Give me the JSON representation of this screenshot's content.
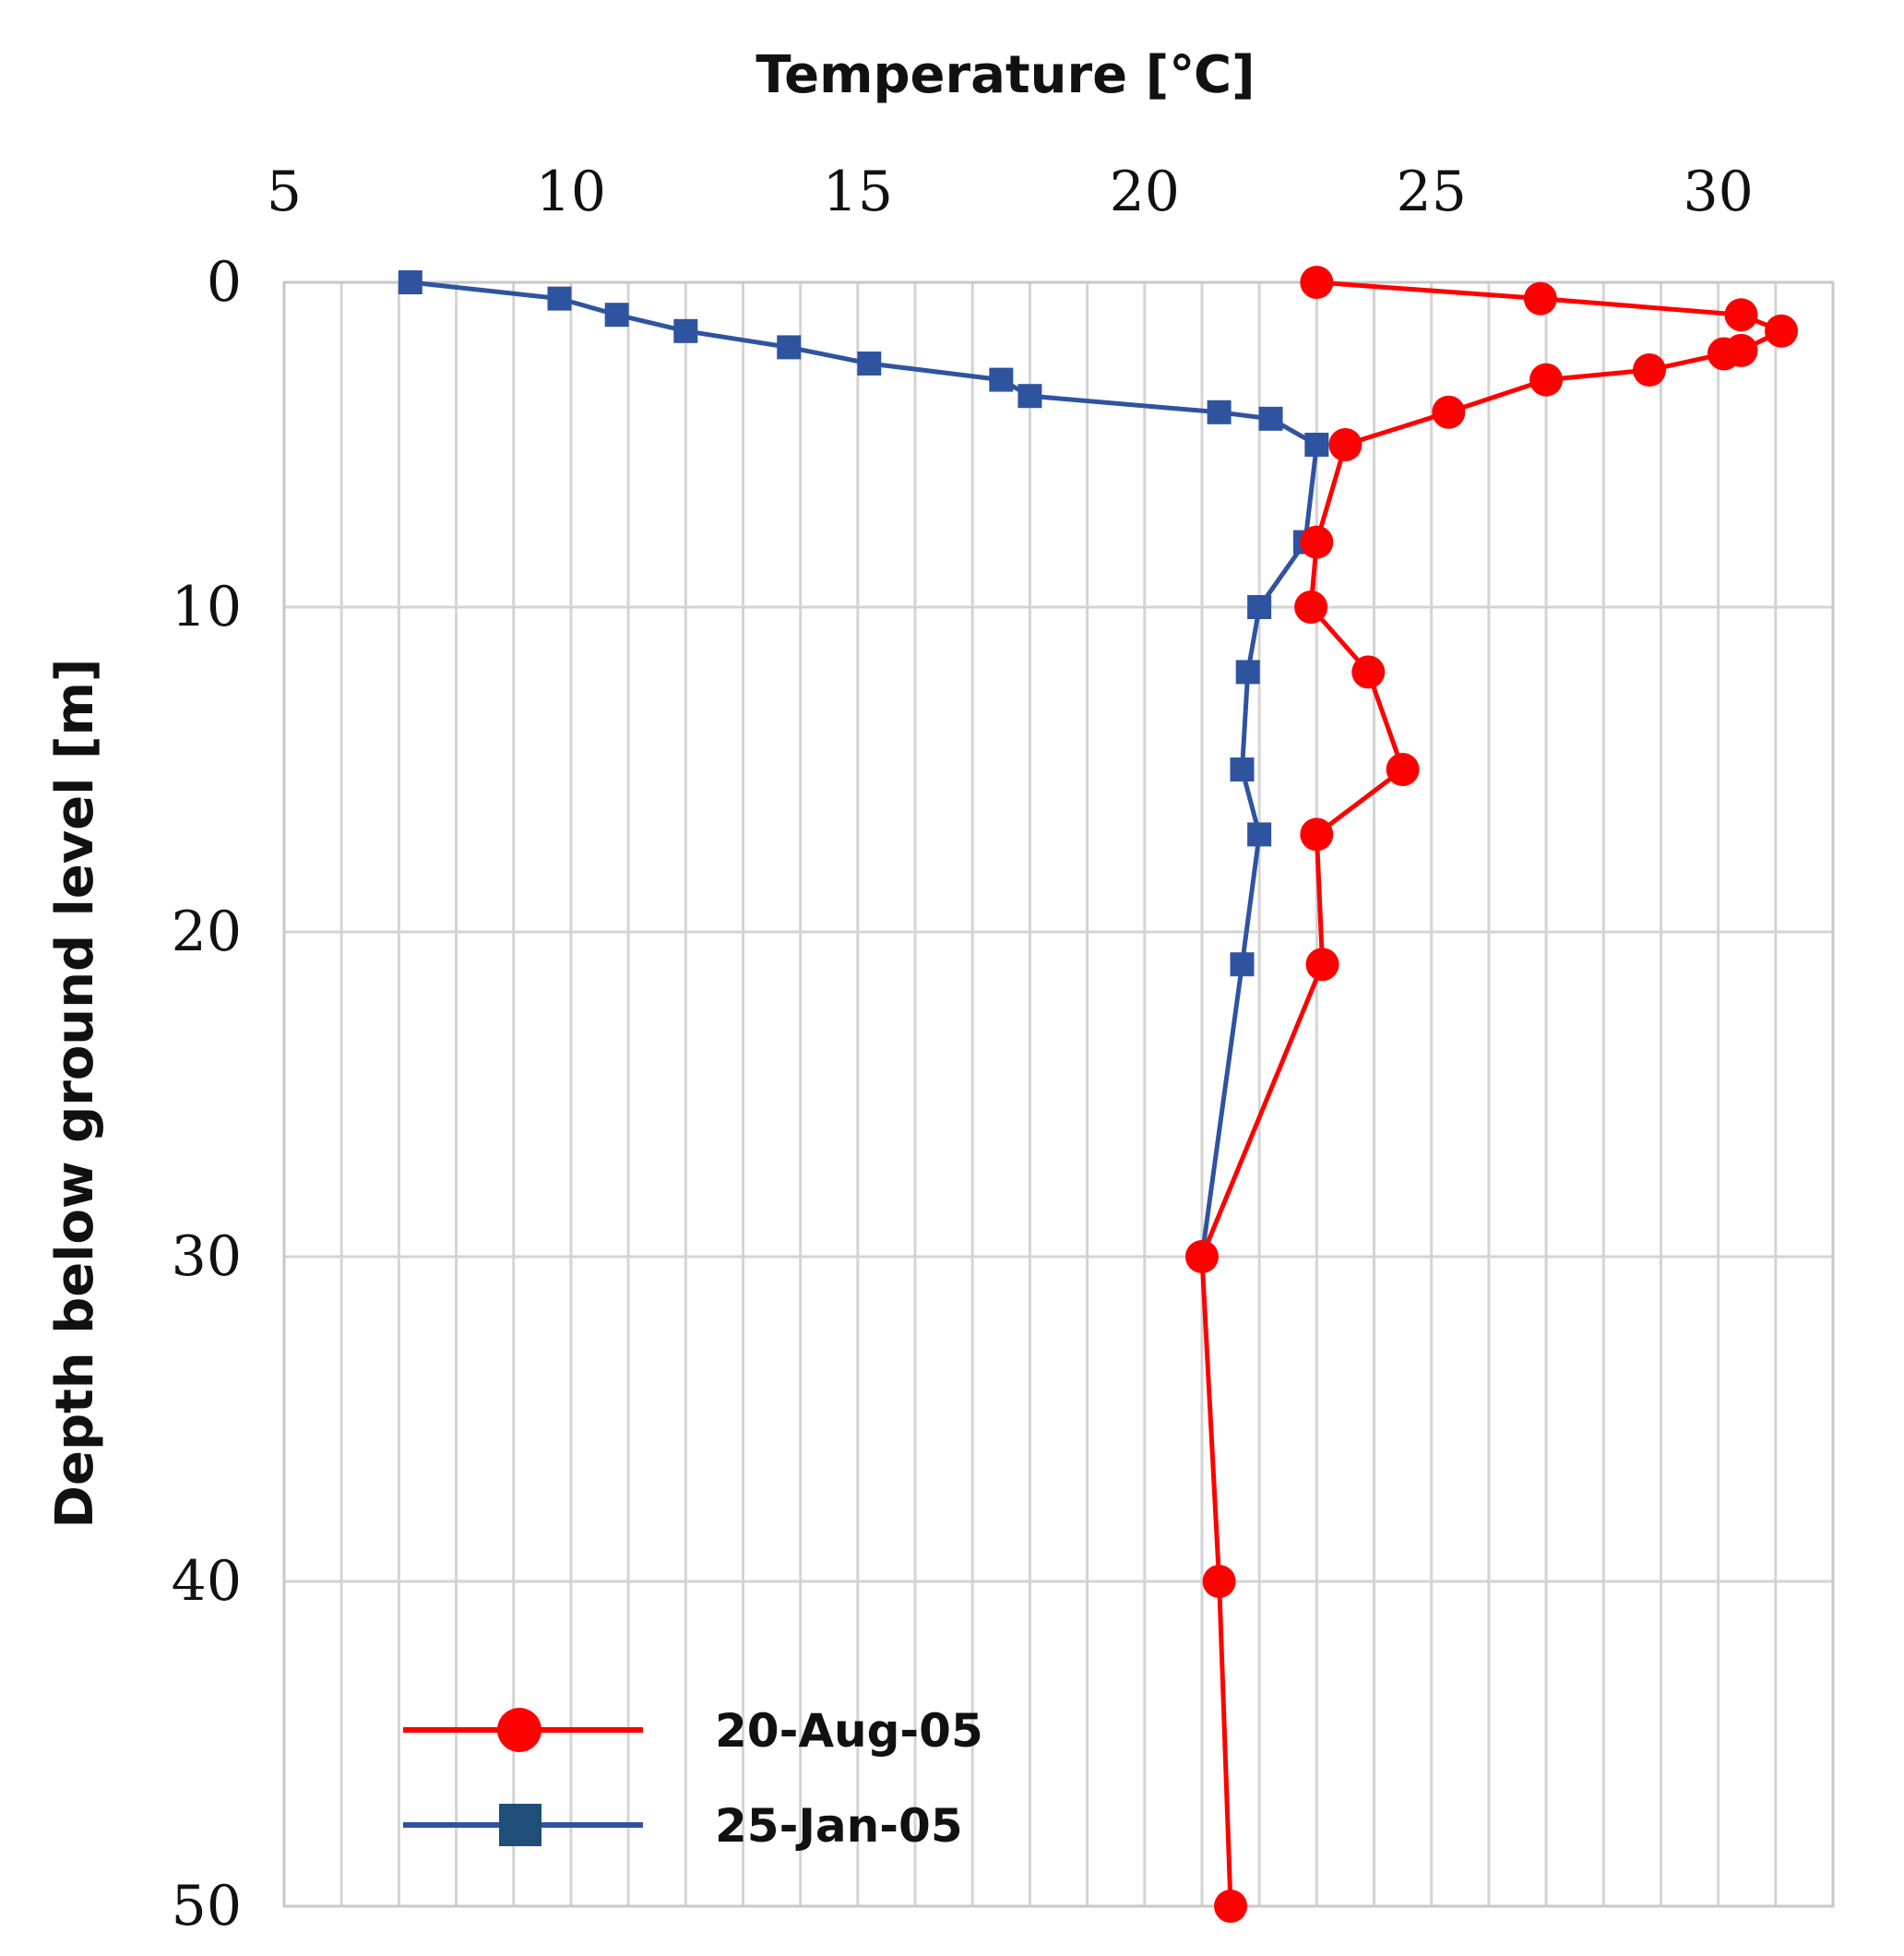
{
  "chart_data": {
    "type": "line",
    "x_axis": {
      "label": "Temperature [℃]",
      "position": "top",
      "range": [
        5,
        32
      ],
      "ticks": [
        5,
        10,
        15,
        20,
        25,
        30
      ],
      "tick_labels": [
        "5",
        "10",
        "15",
        "20",
        "25",
        "30"
      ],
      "minor_step": 1
    },
    "y_axis": {
      "label": "Depth below ground level [m]",
      "inverted": true,
      "range": [
        0,
        50
      ],
      "ticks": [
        0,
        10,
        20,
        30,
        40,
        50
      ],
      "tick_labels": [
        "0",
        "10",
        "20",
        "30",
        "40",
        "50"
      ]
    },
    "grid": true,
    "legend_position": "bottom-left",
    "series": [
      {
        "name": "20-Aug-05",
        "color": "#ff0000",
        "marker": "circle",
        "points": [
          {
            "temperature": 23.0,
            "depth": 0
          },
          {
            "temperature": 26.9,
            "depth": 0.5
          },
          {
            "temperature": 30.4,
            "depth": 1.0
          },
          {
            "temperature": 31.1,
            "depth": 1.5
          },
          {
            "temperature": 30.4,
            "depth": 2.1
          },
          {
            "temperature": 30.1,
            "depth": 2.2
          },
          {
            "temperature": 28.8,
            "depth": 2.7
          },
          {
            "temperature": 27.0,
            "depth": 3.0
          },
          {
            "temperature": 25.3,
            "depth": 4.0
          },
          {
            "temperature": 23.5,
            "depth": 5.0
          },
          {
            "temperature": 23.0,
            "depth": 8.0
          },
          {
            "temperature": 22.9,
            "depth": 10.0
          },
          {
            "temperature": 23.9,
            "depth": 12.0
          },
          {
            "temperature": 24.5,
            "depth": 15.0
          },
          {
            "temperature": 23.0,
            "depth": 17.0
          },
          {
            "temperature": 23.1,
            "depth": 21.0
          },
          {
            "temperature": 21.0,
            "depth": 30.0
          },
          {
            "temperature": 21.3,
            "depth": 40.0
          },
          {
            "temperature": 21.5,
            "depth": 50.0
          }
        ]
      },
      {
        "name": "25-Jan-05",
        "color": "#2e54a0",
        "legend_marker_color": "#1f4e79",
        "marker": "square",
        "points": [
          {
            "temperature": 7.2,
            "depth": 0
          },
          {
            "temperature": 9.8,
            "depth": 0.5
          },
          {
            "temperature": 10.8,
            "depth": 1.0
          },
          {
            "temperature": 12.0,
            "depth": 1.5
          },
          {
            "temperature": 13.8,
            "depth": 2.0
          },
          {
            "temperature": 15.2,
            "depth": 2.5
          },
          {
            "temperature": 17.5,
            "depth": 3.0
          },
          {
            "temperature": 18.0,
            "depth": 3.5
          },
          {
            "temperature": 21.3,
            "depth": 4.0
          },
          {
            "temperature": 22.2,
            "depth": 4.2
          },
          {
            "temperature": 23.0,
            "depth": 5.0
          },
          {
            "temperature": 22.8,
            "depth": 8.0
          },
          {
            "temperature": 22.0,
            "depth": 10.0
          },
          {
            "temperature": 21.8,
            "depth": 12.0
          },
          {
            "temperature": 21.7,
            "depth": 15.0
          },
          {
            "temperature": 22.0,
            "depth": 17.0
          },
          {
            "temperature": 21.7,
            "depth": 21.0
          },
          {
            "temperature": 21.0,
            "depth": 30.0
          }
        ]
      }
    ]
  }
}
